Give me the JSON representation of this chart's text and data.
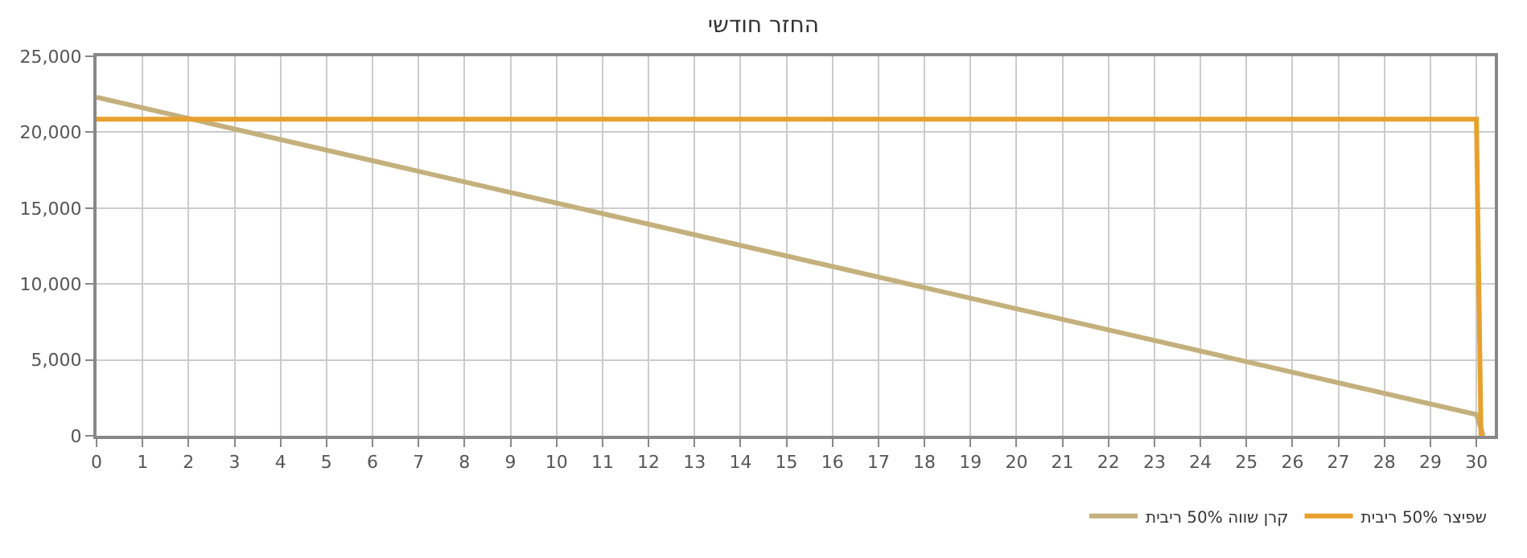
{
  "chart_data": {
    "type": "line",
    "title": "החזר חודשי",
    "series": [
      {
        "name": "קרן שווה 50% ריבית",
        "color": "#c4b07c",
        "x": [
          0,
          30,
          30.15
        ],
        "values": [
          22300,
          1400,
          0
        ]
      },
      {
        "name": "שפיצר 50% ריבית",
        "color": "#e8a02e",
        "x": [
          0,
          30,
          30.1
        ],
        "values": [
          20850,
          20850,
          0
        ]
      }
    ],
    "xlim": [
      0,
      30.4
    ],
    "xticks": [
      0,
      1,
      2,
      3,
      4,
      5,
      6,
      7,
      8,
      9,
      10,
      11,
      12,
      13,
      14,
      15,
      16,
      17,
      18,
      19,
      20,
      21,
      22,
      23,
      24,
      25,
      26,
      27,
      28,
      29,
      30
    ],
    "ylim": [
      0,
      25000
    ],
    "yticks": [
      {
        "value": 0,
        "label": "0"
      },
      {
        "value": 5000,
        "label": "5,000"
      },
      {
        "value": 10000,
        "label": "10,000"
      },
      {
        "value": 15000,
        "label": "15,000"
      },
      {
        "value": 20000,
        "label": "20,000"
      },
      {
        "value": 25000,
        "label": "25,000"
      }
    ],
    "grid": true,
    "legend": "bottom",
    "marker": "none",
    "line_style": "solid"
  }
}
